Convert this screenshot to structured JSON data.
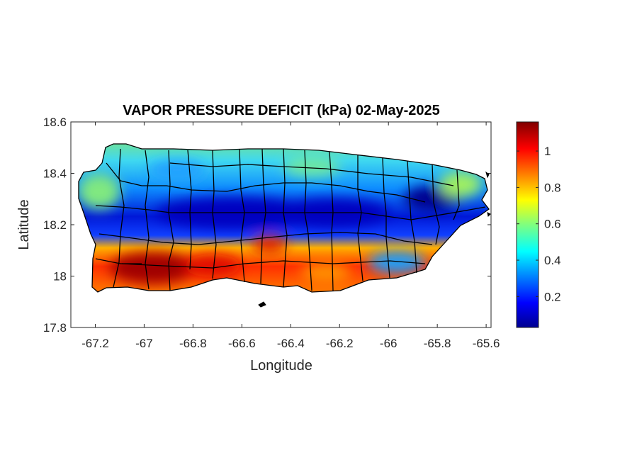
{
  "map": {
    "title": "VAPOR PRESSURE DEFICIT (kPa) 02-May-2025",
    "xlabel": "Longitude",
    "ylabel": "Latitude",
    "xlim": [
      -67.3,
      -65.58
    ],
    "ylim": [
      17.8,
      18.6
    ],
    "xticks": [
      "-67.2",
      "-67",
      "-66.8",
      "-66.6",
      "-66.4",
      "-66.2",
      "-66",
      "-65.8",
      "-65.6"
    ],
    "yticks": [
      "18.6",
      "18.4",
      "18.2",
      "18",
      "17.8"
    ],
    "colorbar": {
      "colormap": "jet",
      "range": [
        0.03,
        1.16
      ],
      "ticks": [
        "1",
        "0.8",
        "0.6",
        "0.4",
        "0.2"
      ]
    },
    "region": "Puerto Rico municipalities",
    "colors": {
      "dry": "#8b0000",
      "wet": "#00008b",
      "border": "#000000"
    }
  }
}
